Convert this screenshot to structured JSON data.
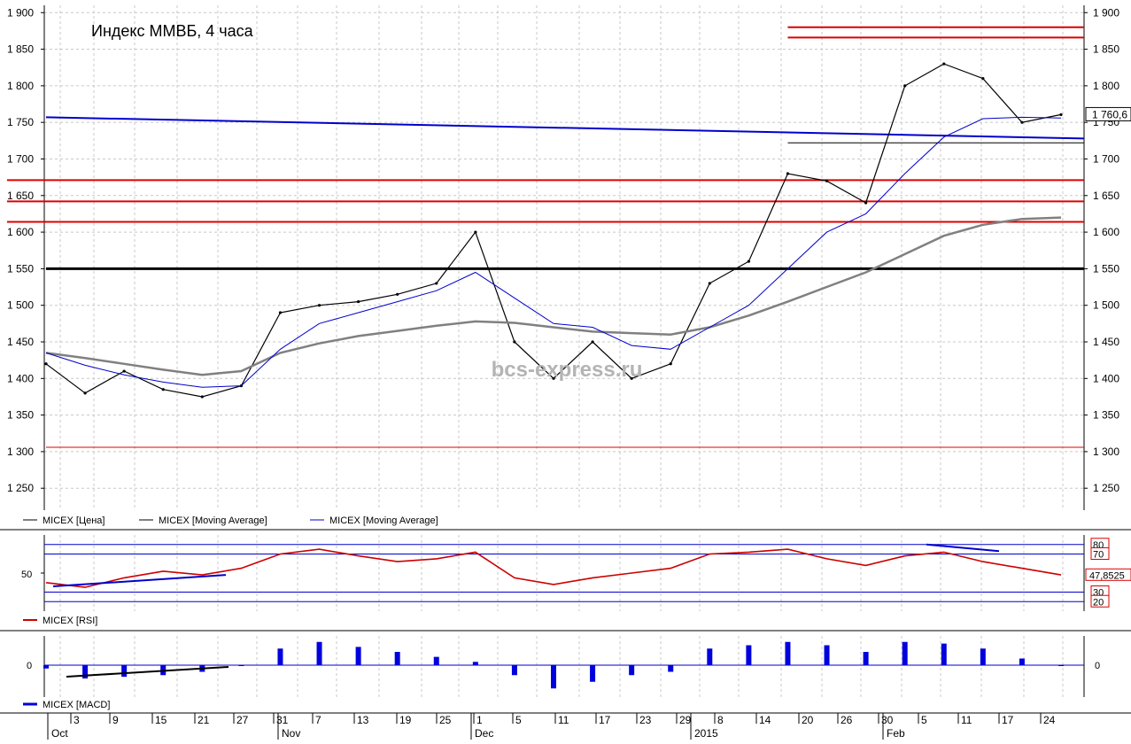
{
  "colors": {
    "price": "#000000",
    "ma_long": "#808080",
    "ma_short": "#0000cc",
    "rsi": "#cc0000",
    "macd": "#0000dd",
    "level_red": "#dd0000",
    "trend_blue": "#0000cc",
    "grid": "#c8c8c8",
    "watermark": "#b4b4b4"
  },
  "main": {
    "title": "Индекс ММВБ, 4 часа",
    "watermark": "bcs-express.ru",
    "y_ticks": [
      "1 250",
      "1 300",
      "1 350",
      "1 400",
      "1 450",
      "1 500",
      "1 550",
      "1 600",
      "1 650",
      "1 700",
      "1 750",
      "1 800",
      "1 850",
      "1 900"
    ],
    "last_value_label": "1 760,6",
    "legend": [
      "MICEX [Цена]",
      "MICEX [Moving Average]",
      "MICEX [Moving Average]"
    ]
  },
  "rsi_panel": {
    "label": "MICEX [RSI]",
    "ticks": [
      "80",
      "70",
      "50",
      "30",
      "20"
    ],
    "last_value_label": "47,8525"
  },
  "macd_panel": {
    "label": "MICEX [MACD]",
    "zero_label": "0"
  },
  "x_axis": {
    "day_ticks": [
      "3",
      "9",
      "15",
      "21",
      "27",
      "31",
      "7",
      "13",
      "19",
      "25",
      "1",
      "5",
      "11",
      "17",
      "23",
      "29",
      "8",
      "14",
      "20",
      "26",
      "30",
      "5",
      "11",
      "17",
      "24"
    ],
    "month_labels": [
      "Oct",
      "Nov",
      "Dec",
      "2015",
      "Feb"
    ]
  },
  "chart_data": {
    "type": "line",
    "title": "Индекс ММВБ, 4 часа",
    "ylim": [
      1220,
      1910
    ],
    "y_scale": "linear",
    "grid": true,
    "x": [
      "Oct 1",
      "Oct 3",
      "Oct 9",
      "Oct 15",
      "Oct 21",
      "Oct 27",
      "Oct 31",
      "Nov 7",
      "Nov 13",
      "Nov 19",
      "Nov 25",
      "Dec 1",
      "Dec 5",
      "Dec 11",
      "Dec 17",
      "Dec 23",
      "Dec 29",
      "Jan 8",
      "Jan 14",
      "Jan 20",
      "Jan 26",
      "Jan 30",
      "Feb 5",
      "Feb 11",
      "Feb 17",
      "Feb 24",
      "Feb 26"
    ],
    "series": [
      {
        "name": "MICEX [Цена]",
        "values": [
          1420,
          1380,
          1410,
          1385,
          1375,
          1390,
          1490,
          1500,
          1505,
          1515,
          1530,
          1600,
          1450,
          1400,
          1450,
          1400,
          1420,
          1530,
          1560,
          1680,
          1670,
          1640,
          1800,
          1830,
          1810,
          1750,
          1760.6
        ]
      },
      {
        "name": "MICEX [Moving Average]",
        "values": [
          1435,
          1428,
          1420,
          1412,
          1405,
          1410,
          1435,
          1448,
          1458,
          1465,
          1472,
          1478,
          1476,
          1470,
          1464,
          1462,
          1460,
          1470,
          1486,
          1505,
          1525,
          1545,
          1570,
          1595,
          1610,
          1618,
          1620
        ]
      },
      {
        "name": "MICEX [Moving Average]",
        "values": [
          1435,
          1418,
          1405,
          1395,
          1388,
          1390,
          1440,
          1475,
          1490,
          1505,
          1520,
          1545,
          1510,
          1475,
          1470,
          1445,
          1440,
          1470,
          1500,
          1550,
          1600,
          1625,
          1680,
          1730,
          1755,
          1757,
          1756
        ]
      }
    ],
    "horizontal_levels": [
      {
        "value": 1880,
        "color": "red",
        "from": "Jan 20"
      },
      {
        "value": 1866,
        "color": "red",
        "from": "Jan 20"
      },
      {
        "value": 1722,
        "color": "black",
        "from": "Jan 20"
      },
      {
        "value": 1671,
        "color": "red",
        "from": "Feb 7"
      },
      {
        "value": 1642,
        "color": "red",
        "from": "Feb 7"
      },
      {
        "value": 1614,
        "color": "red",
        "from": "Jan 15"
      },
      {
        "value": 1550,
        "color": "black",
        "from": "Oct 1"
      },
      {
        "value": 1306,
        "color": "red",
        "from": "Oct 1"
      }
    ],
    "trendline": {
      "from": [
        "Oct 1",
        1757
      ],
      "to": [
        "Feb 26",
        1728
      ]
    },
    "rsi": {
      "name": "MICEX [RSI]",
      "levels": [
        80,
        70,
        30,
        20
      ],
      "last": 47.8525,
      "values": [
        40,
        35,
        45,
        52,
        48,
        55,
        70,
        75,
        68,
        62,
        65,
        72,
        45,
        38,
        45,
        50,
        55,
        70,
        72,
        75,
        65,
        58,
        68,
        72,
        62,
        55,
        48
      ]
    },
    "macd": {
      "name": "MICEX [MACD]",
      "values": [
        -2,
        -8,
        -7,
        -6,
        -4,
        0,
        10,
        14,
        11,
        8,
        5,
        2,
        -6,
        -14,
        -10,
        -6,
        -4,
        10,
        12,
        14,
        12,
        8,
        14,
        13,
        10,
        4,
        0
      ]
    }
  }
}
